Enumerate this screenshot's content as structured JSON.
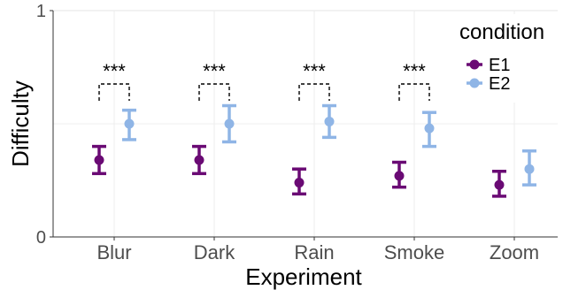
{
  "chart_data": {
    "type": "scatter",
    "categories": [
      "Blur",
      "Dark",
      "Rain",
      "Smoke",
      "Zoom"
    ],
    "xlabel": "Experiment",
    "ylabel": "Difficulty",
    "ylim": [
      0,
      1
    ],
    "yticks": [
      "0",
      "1"
    ],
    "grid": true,
    "legend": {
      "title": "condition",
      "placement": "top-right"
    },
    "series": [
      {
        "name": "E1",
        "color": "#6a0a74",
        "values": [
          0.34,
          0.34,
          0.24,
          0.27,
          0.23
        ],
        "lower": [
          0.28,
          0.28,
          0.19,
          0.22,
          0.18
        ],
        "upper": [
          0.4,
          0.4,
          0.3,
          0.33,
          0.29
        ]
      },
      {
        "name": "E2",
        "color": "#8fb5e6",
        "values": [
          0.5,
          0.5,
          0.51,
          0.48,
          0.3
        ],
        "lower": [
          0.43,
          0.42,
          0.44,
          0.4,
          0.23
        ],
        "upper": [
          0.56,
          0.58,
          0.58,
          0.55,
          0.38
        ]
      }
    ],
    "annotations": [
      {
        "category": "Blur",
        "label": "***"
      },
      {
        "category": "Dark",
        "label": "***"
      },
      {
        "category": "Rain",
        "label": "***"
      },
      {
        "category": "Smoke",
        "label": "***"
      }
    ]
  }
}
